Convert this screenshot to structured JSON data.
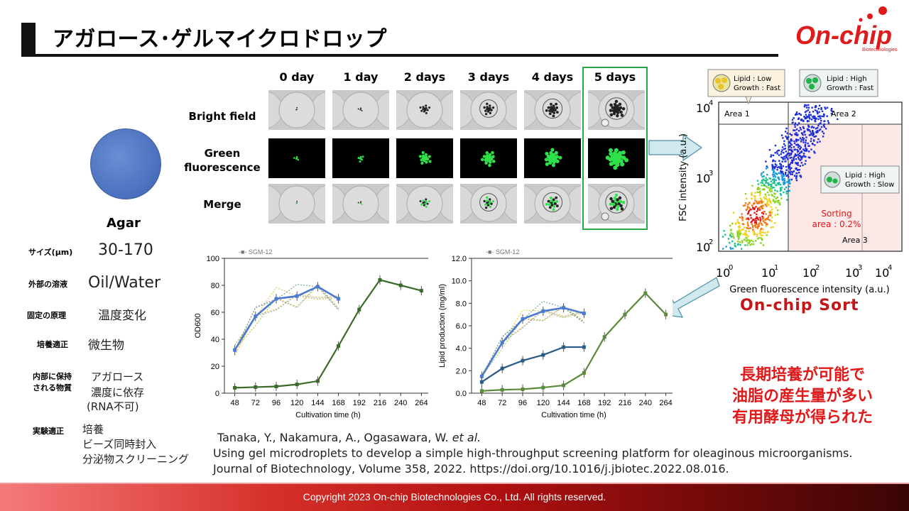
{
  "header": {
    "title": "アガロース･ゲルマイクロドロップ",
    "logo_text": "On-chip",
    "logo_subtext": "Biotechnologies"
  },
  "agar": {
    "label": "Agar",
    "properties": [
      {
        "label": "サイズ(μm)",
        "value": "30-170"
      },
      {
        "label": "外部の溶液",
        "value": "Oil/Water"
      },
      {
        "label": "固定の原理",
        "value": "温度変化"
      },
      {
        "label": "培養適正",
        "value": "微生物"
      },
      {
        "label_line1": "内部に保持",
        "label_line2": "される物質",
        "value_line1": "アガロース",
        "value_line2": "濃度に依存",
        "value_line3": "(RNA不可)"
      },
      {
        "label": "実験適正",
        "value_line1": "培養",
        "value_line2": "ビーズ同時封入",
        "value_line3": "分泌物スクリーニング"
      }
    ]
  },
  "microscopy": {
    "columns": [
      "0 day",
      "1 day",
      "2 days",
      "3 days",
      "4 days",
      "5 days"
    ],
    "rows": [
      {
        "label_line1": "Bright field",
        "label_line2": ""
      },
      {
        "label_line1": "Green",
        "label_line2": "fluorescence"
      },
      {
        "label_line1": "Merge",
        "label_line2": ""
      }
    ]
  },
  "flow": {
    "y_label": "FSC intensity (a.u.)",
    "x_label": "Green fluorescence intensity (a.u.)",
    "area1": "Area 1",
    "area2": "Area 2",
    "area3": "Area 3",
    "sorting_line1": "Sorting",
    "sorting_line2": "area : 0.2%",
    "box1_line1": "Lipid : Low",
    "box1_line2": "Growth : Fast",
    "box2_line1": "Lipid : High",
    "box2_line2": "Growth : Fast",
    "box3_line1": "Lipid : High",
    "box3_line2": "Growth : Slow",
    "sort_label": "On-chip Sort",
    "ticks": [
      "10",
      "10",
      "10",
      "10",
      "10",
      "10"
    ]
  },
  "chart_data": [
    {
      "type": "line",
      "ylabel": "OD600",
      "xlabel": "Cultivation time (h)",
      "legend_fragment": "SGM-12",
      "x": [
        48,
        72,
        96,
        120,
        144,
        168,
        192,
        216,
        240,
        264
      ],
      "ylim": [
        0,
        100
      ],
      "yticks": [
        0,
        20,
        40,
        60,
        80,
        100
      ],
      "series": [
        {
          "name": "",
          "color": "#4a7bd0",
          "x": [
            48,
            72,
            96,
            120,
            144,
            168
          ],
          "values": [
            32,
            57,
            70,
            72,
            79,
            70
          ]
        },
        {
          "name": "",
          "color": "#3a6b2a",
          "x": [
            48,
            72,
            96,
            120,
            144,
            168,
            192,
            216,
            240,
            264
          ],
          "values": [
            4,
            4.5,
            5,
            6.5,
            9,
            35,
            62,
            84,
            80,
            76
          ]
        }
      ]
    },
    {
      "type": "line",
      "ylabel": "Lipid production (mg/ml)",
      "xlabel": "Cultivation time (h)",
      "legend_fragment": "SGM-12",
      "x": [
        48,
        72,
        96,
        120,
        144,
        168,
        192,
        216,
        240,
        264
      ],
      "ylim": [
        0,
        12
      ],
      "yticks": [
        "0.0",
        "2.0",
        "4.0",
        "6.0",
        "8.0",
        "10.0",
        "12.0"
      ],
      "series": [
        {
          "name": "",
          "color": "#4a7bd0",
          "x": [
            48,
            72,
            96,
            120,
            144,
            168
          ],
          "values": [
            1.5,
            4.5,
            6.6,
            7.3,
            7.6,
            7.1
          ]
        },
        {
          "name": "",
          "color": "#2a5a8a",
          "x": [
            48,
            72,
            96,
            120,
            144,
            168
          ],
          "values": [
            1.0,
            2.2,
            2.9,
            3.4,
            4.1,
            4.1
          ]
        },
        {
          "name": "",
          "color": "#5a8a3a",
          "x": [
            48,
            72,
            96,
            120,
            144,
            168,
            192,
            216,
            240,
            264
          ],
          "values": [
            0.2,
            0.3,
            0.35,
            0.5,
            0.7,
            1.8,
            5.0,
            7.0,
            8.9,
            7.0
          ]
        }
      ]
    }
  ],
  "conclusion": {
    "line1": "長期培養が可能で",
    "line2": "油脂の産生量が多い",
    "line3": "有用酵母が得られた"
  },
  "citation": {
    "authors": "Tanaka, Y.,  Nakamura, A., Ogasawara, W. ",
    "etal": "et al.",
    "line2": "Using gel microdroplets to develop a simple high-throughput screening platform for oleaginous microorganisms.",
    "line3": "Journal of Biotechnology, Volume 358, 2022. https://doi.org/10.1016/j.jbiotec.2022.08.016."
  },
  "footer": {
    "copyright": "Copyright 2023 On-chip Biotechnologies Co., Ltd. All rights reserved."
  }
}
